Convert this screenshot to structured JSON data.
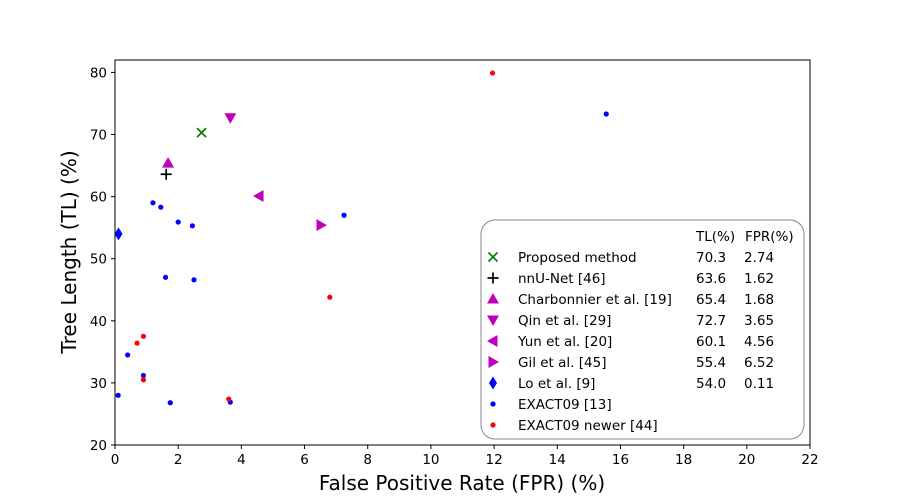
{
  "chart_data": {
    "type": "scatter",
    "xlabel": "False Positive Rate (FPR) (%)",
    "ylabel": "Tree Length (TL) (%)",
    "xlim": [
      0,
      22
    ],
    "ylim": [
      20,
      82
    ],
    "xticks": [
      0,
      2,
      4,
      6,
      8,
      10,
      12,
      14,
      16,
      18,
      20,
      22
    ],
    "yticks": [
      20,
      30,
      40,
      50,
      60,
      70,
      80
    ],
    "legend_position": "lower-right",
    "legend_headers": {
      "tl": "TL(%)",
      "fpr": "FPR(%)"
    },
    "series": [
      {
        "name": "Proposed method",
        "marker": "x",
        "color": "#008000",
        "tl": "70.3",
        "fpr": "2.74",
        "points": [
          [
            2.74,
            70.3
          ]
        ]
      },
      {
        "name": "nnU-Net [46]",
        "marker": "plus",
        "color": "#000000",
        "tl": "63.6",
        "fpr": "1.62",
        "points": [
          [
            1.62,
            63.6
          ]
        ]
      },
      {
        "name": "Charbonnier et al. [19]",
        "marker": "triangle-up",
        "color": "#bf00bf",
        "tl": "65.4",
        "fpr": "1.68",
        "points": [
          [
            1.68,
            65.4
          ]
        ]
      },
      {
        "name": "Qin et al. [29]",
        "marker": "triangle-down",
        "color": "#bf00bf",
        "tl": "72.7",
        "fpr": "3.65",
        "points": [
          [
            3.65,
            72.7
          ]
        ]
      },
      {
        "name": "Yun et al. [20]",
        "marker": "triangle-left",
        "color": "#bf00bf",
        "tl": "60.1",
        "fpr": "4.56",
        "points": [
          [
            4.56,
            60.1
          ]
        ]
      },
      {
        "name": "Gil et al. [45]",
        "marker": "triangle-right",
        "color": "#bf00bf",
        "tl": "55.4",
        "fpr": "6.52",
        "points": [
          [
            6.52,
            55.4
          ]
        ]
      },
      {
        "name": "Lo et al. [9]",
        "marker": "thin-diamond",
        "color": "#0000ff",
        "tl": "54.0",
        "fpr": "0.11",
        "points": [
          [
            0.11,
            54.0
          ]
        ]
      },
      {
        "name": "EXACT09 [13]",
        "marker": "dot",
        "color": "#0000ff",
        "tl": "",
        "fpr": "",
        "points": [
          [
            0.1,
            28.0
          ],
          [
            0.4,
            34.5
          ],
          [
            0.9,
            31.2
          ],
          [
            1.2,
            59.0
          ],
          [
            1.45,
            58.3
          ],
          [
            1.6,
            47.0
          ],
          [
            1.75,
            26.8
          ],
          [
            2.0,
            55.9
          ],
          [
            2.45,
            55.3
          ],
          [
            2.5,
            46.6
          ],
          [
            3.65,
            26.9
          ],
          [
            7.25,
            57.0
          ],
          [
            15.55,
            73.3
          ]
        ]
      },
      {
        "name": "EXACT09 newer [44]",
        "marker": "dot",
        "color": "#ff0000",
        "tl": "",
        "fpr": "",
        "points": [
          [
            0.7,
            36.4
          ],
          [
            0.9,
            37.5
          ],
          [
            0.9,
            30.5
          ],
          [
            3.6,
            27.4
          ],
          [
            6.8,
            43.8
          ],
          [
            11.95,
            79.9
          ]
        ]
      }
    ]
  }
}
